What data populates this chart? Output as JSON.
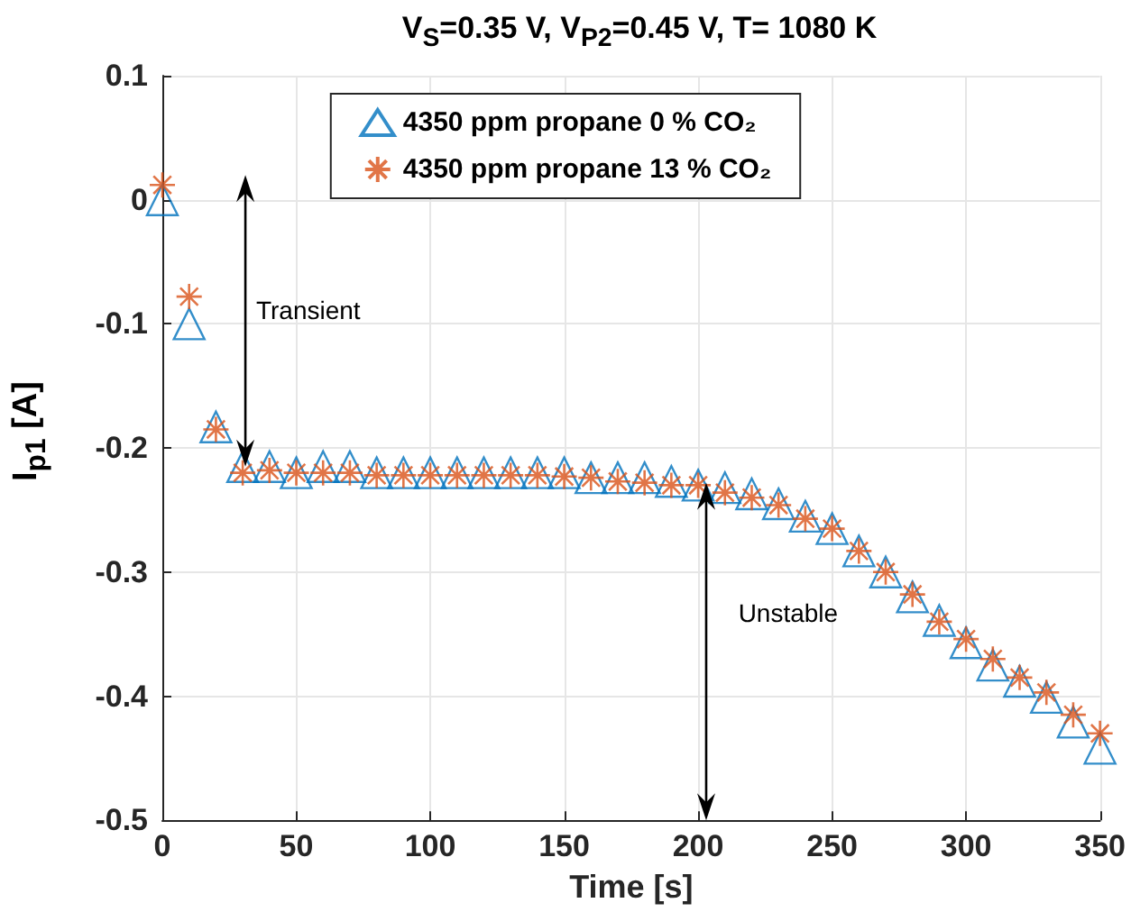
{
  "chart_data": {
    "type": "scatter",
    "title": "V$_{S}$=0.35 V, V$_{P2}$=0.45 V, T= 1080 K",
    "xlabel": "Time [s]",
    "ylabel": "I$_{p1}$ [A]",
    "x": [
      0,
      10,
      20,
      30,
      40,
      50,
      60,
      70,
      80,
      90,
      100,
      110,
      120,
      130,
      140,
      150,
      160,
      170,
      180,
      190,
      200,
      210,
      220,
      230,
      240,
      250,
      260,
      270,
      280,
      290,
      300,
      310,
      320,
      330,
      340,
      350
    ],
    "series": [
      {
        "name": "4350 ppm propane 0 % CO₂",
        "color": "#0072bd",
        "marker": "triangle",
        "values": [
          0,
          -0.1,
          -0.183,
          -0.215,
          -0.215,
          -0.22,
          -0.215,
          -0.215,
          -0.22,
          -0.22,
          -0.22,
          -0.22,
          -0.22,
          -0.22,
          -0.22,
          -0.22,
          -0.224,
          -0.224,
          -0.224,
          -0.227,
          -0.23,
          -0.232,
          -0.237,
          -0.245,
          -0.255,
          -0.265,
          -0.283,
          -0.3,
          -0.32,
          -0.339,
          -0.357,
          -0.375,
          -0.388,
          -0.401,
          -0.421,
          -0.442
        ]
      },
      {
        "name": "4350 ppm propane 13 % CO₂",
        "color": "#d95319",
        "marker": "cross",
        "values": [
          0.012,
          -0.078,
          -0.185,
          -0.22,
          -0.218,
          -0.22,
          -0.22,
          -0.22,
          -0.222,
          -0.222,
          -0.222,
          -0.222,
          -0.222,
          -0.222,
          -0.222,
          -0.223,
          -0.224,
          -0.227,
          -0.228,
          -0.23,
          -0.23,
          -0.236,
          -0.24,
          -0.246,
          -0.257,
          -0.265,
          -0.283,
          -0.3,
          -0.318,
          -0.34,
          -0.354,
          -0.37,
          -0.385,
          -0.397,
          -0.415,
          -0.43
        ]
      }
    ],
    "xlim": [
      0,
      350
    ],
    "xticks": [
      0,
      50,
      100,
      150,
      200,
      250,
      300,
      350
    ],
    "ylim": [
      -0.5,
      0.1
    ],
    "yticks": [
      -0.5,
      -0.4,
      -0.3,
      -0.2,
      -0.1,
      0,
      0.1
    ],
    "grid": true,
    "legend": "top",
    "annotations": [
      "Transient",
      "Unstable"
    ]
  }
}
